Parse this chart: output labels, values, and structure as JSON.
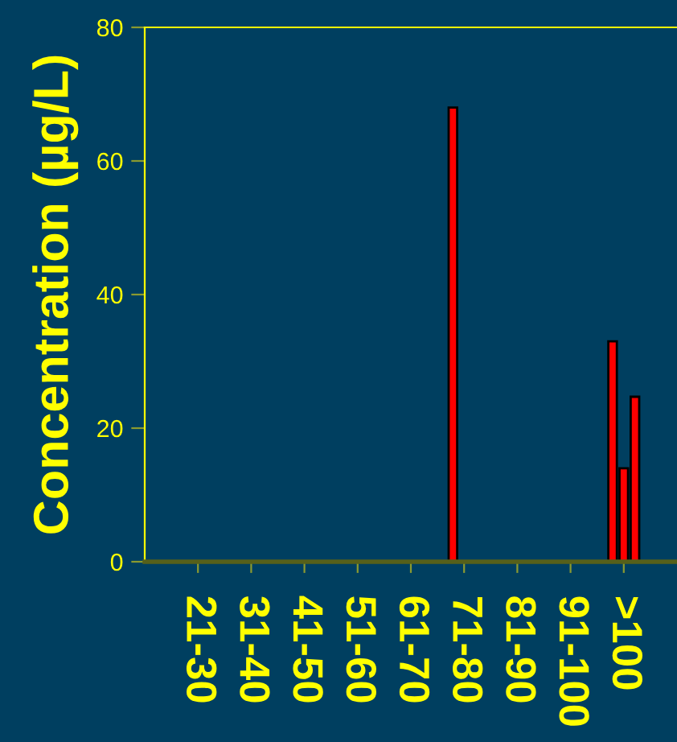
{
  "chart_data": {
    "type": "bar",
    "ylabel": "Concentration (µg/L)",
    "categories": [
      "21-30",
      "31-40",
      "41-50",
      "51-60",
      "61-70",
      "71-80",
      "81-90",
      "91-100",
      ">100"
    ],
    "series": [
      {
        "color": "#ff0000",
        "values": [
          0,
          0,
          0,
          0,
          0,
          68,
          0,
          0,
          33
        ]
      },
      {
        "color": "#ff0000",
        "values": [
          0,
          0,
          0,
          0,
          0,
          0,
          0,
          0,
          14
        ]
      },
      {
        "color": "#ff0000",
        "values": [
          0,
          0,
          0,
          0,
          0,
          0,
          0,
          0,
          24.7
        ]
      }
    ],
    "ylim": [
      0,
      80
    ],
    "yticks": [
      0,
      20,
      40,
      60,
      80
    ],
    "grid": false
  }
}
